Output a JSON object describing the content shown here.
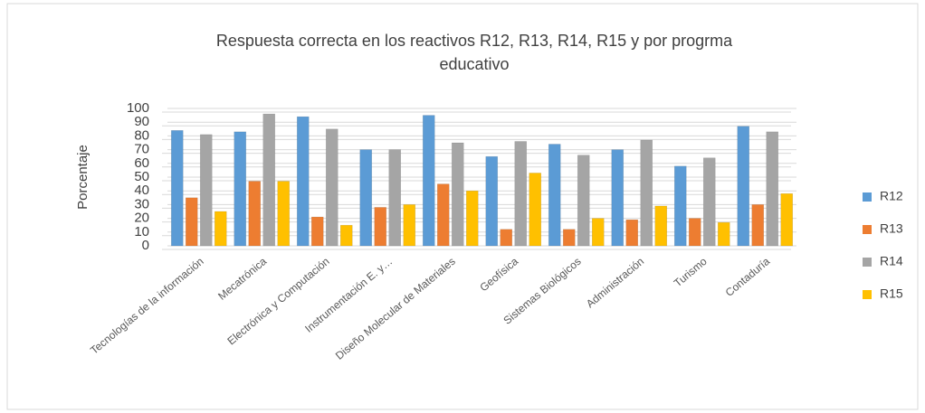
{
  "chart_data": {
    "type": "bar",
    "title": [
      "Respuesta correcta en  los reactivos R12, R13, R14, R15 y por progrma",
      "educativo"
    ],
    "y_label": "Porcentaje",
    "categories": [
      "Tecnologías de la información",
      "Mecatrónica",
      "Electrónica y Computación",
      "Instrumentación E. y…",
      "Diseño Molecular de Materiales",
      "Geofísica",
      "Sistemas Biológicos",
      "Administración",
      "Turismo",
      "Contaduría"
    ],
    "series": [
      {
        "name": "R12",
        "color": "#5b9bd5",
        "values": [
          84,
          83,
          94,
          70,
          95,
          65,
          74,
          70,
          58,
          87
        ]
      },
      {
        "name": "R13",
        "color": "#ed7d31",
        "values": [
          35,
          47,
          21,
          28,
          45,
          12,
          12,
          19,
          20,
          30
        ]
      },
      {
        "name": "R14",
        "color": "#a5a5a5",
        "values": [
          81,
          96,
          85,
          70,
          75,
          76,
          66,
          77,
          64,
          83
        ]
      },
      {
        "name": "R15",
        "color": "#ffc000",
        "values": [
          25,
          47,
          15,
          30,
          40,
          53,
          20,
          29,
          17,
          38
        ]
      }
    ],
    "ylim": [
      0,
      100
    ],
    "yticks": [
      0,
      10,
      20,
      30,
      40,
      50,
      60,
      70,
      80,
      90,
      100
    ],
    "grid": true,
    "legend": "right"
  }
}
